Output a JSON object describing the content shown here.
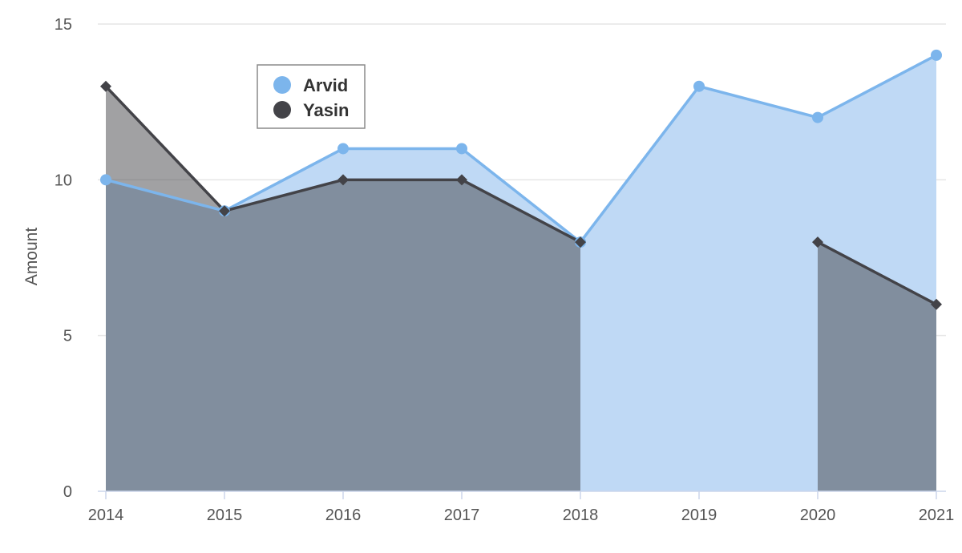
{
  "chart_data": {
    "type": "area",
    "title": "",
    "xlabel": "",
    "ylabel": "Amount",
    "x": [
      2014,
      2015,
      2016,
      2017,
      2018,
      2019,
      2020,
      2021
    ],
    "xlim": [
      2014,
      2021
    ],
    "ylim": [
      0,
      15
    ],
    "yticks": [
      0,
      5,
      10,
      15
    ],
    "grid": true,
    "legend_position": "top-left",
    "series": [
      {
        "name": "Arvid",
        "color": "#7cb5ec",
        "fill_color": "#bfd9f5",
        "marker": "circle",
        "values": [
          10,
          9,
          11,
          11,
          8,
          13,
          12,
          14
        ]
      },
      {
        "name": "Yasin",
        "color": "#434348",
        "fill_color": "rgba(67,67,72,0.5)",
        "marker": "diamond",
        "values": [
          13,
          9,
          10,
          10,
          8,
          null,
          8,
          6
        ]
      }
    ]
  }
}
